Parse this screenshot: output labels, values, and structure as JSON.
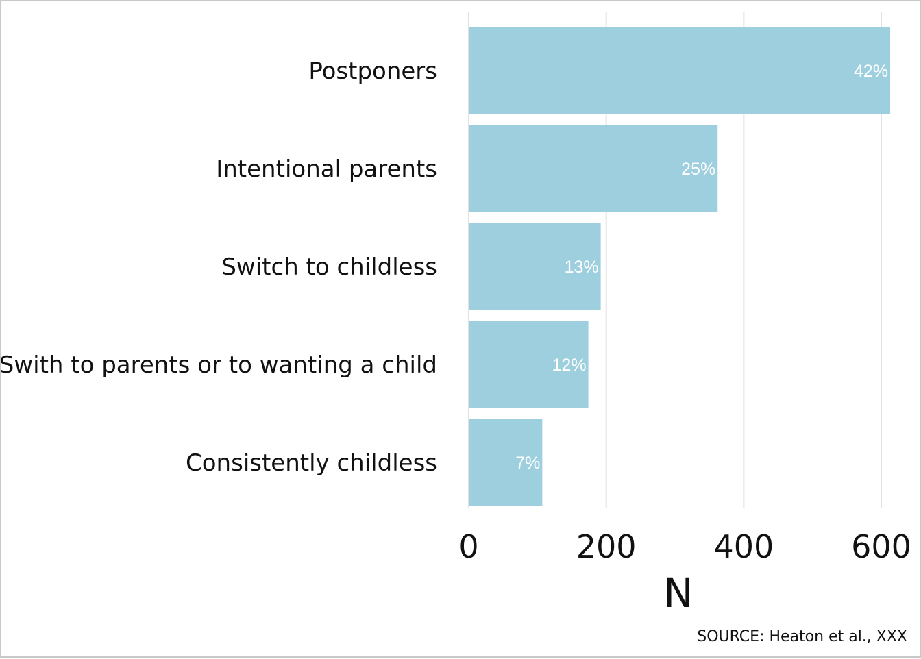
{
  "chart_data": {
    "type": "bar",
    "orientation": "horizontal",
    "categories": [
      "Postponers",
      "Intentional parents",
      "Switch to childless",
      "Swith to parents or to wanting a child",
      "Consistently childless"
    ],
    "values": [
      613,
      362,
      192,
      174,
      107
    ],
    "data_labels": [
      "42%",
      "25%",
      "13%",
      "12%",
      "7%"
    ],
    "xlabel": "N",
    "ylabel": "",
    "xlim": [
      0,
      640
    ],
    "xticks": [
      0,
      200,
      400,
      600
    ],
    "grid": "vertical",
    "bar_color": "#9ecfdf",
    "grid_color": "#e2e2e2"
  },
  "source_text": "SOURCE: Heaton et al., XXX"
}
